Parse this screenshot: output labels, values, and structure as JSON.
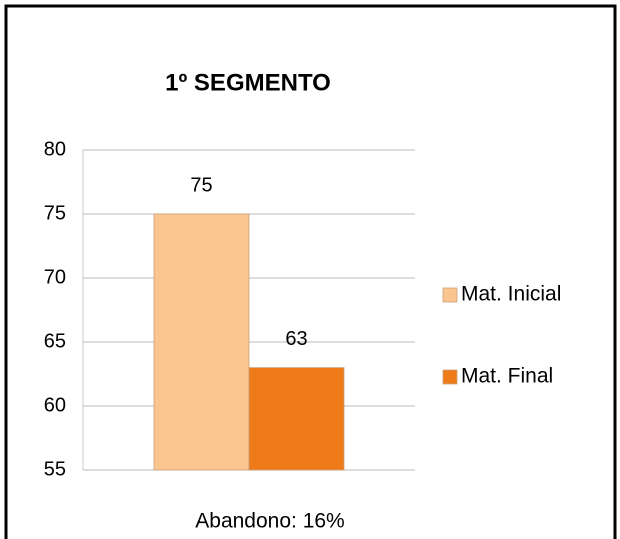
{
  "chart_data": {
    "type": "bar",
    "title": "1º SEGMENTO",
    "categories": [
      null
    ],
    "series": [
      {
        "name": "Mat. Inicial",
        "color": "#fbc58f",
        "values": [
          75
        ]
      },
      {
        "name": "Mat. Final",
        "color": "#ee7a18",
        "values": [
          63
        ]
      }
    ],
    "ylim": [
      55,
      80
    ],
    "yticks": [
      55,
      60,
      65,
      70,
      75,
      80
    ],
    "grid": true,
    "legend": "right",
    "annotation": "Abandono: 16%"
  }
}
